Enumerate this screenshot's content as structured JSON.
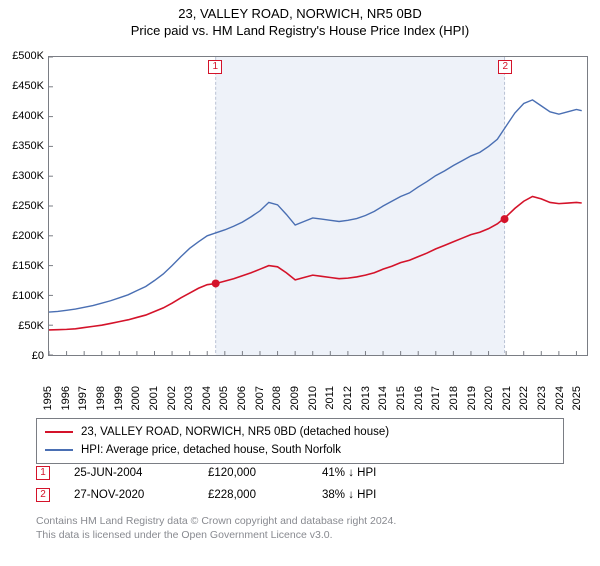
{
  "header": {
    "title": "23, VALLEY ROAD, NORWICH, NR5 0BD",
    "subtitle": "Price paid vs. HM Land Registry's House Price Index (HPI)"
  },
  "chart": {
    "type": "line",
    "background_color": "#ffffff",
    "border_color": "#7a7d84",
    "shaded_region": {
      "x_start": 2004.48,
      "x_end": 2020.91,
      "fill": "#eef2f9",
      "border": "#b9c2d4",
      "border_dash": "3,2"
    },
    "ylim": [
      0,
      500000
    ],
    "ytick_step": 50000,
    "ytick_labels": [
      "£0",
      "£50K",
      "£100K",
      "£150K",
      "£200K",
      "£250K",
      "£300K",
      "£350K",
      "£400K",
      "£450K",
      "£500K"
    ],
    "xlim": [
      1995,
      2025.6
    ],
    "xtick_step": 1,
    "xtick_labels": [
      "1995",
      "1996",
      "1997",
      "1998",
      "1999",
      "2000",
      "2001",
      "2002",
      "2003",
      "2004",
      "2005",
      "2006",
      "2007",
      "2008",
      "2009",
      "2010",
      "2011",
      "2012",
      "2013",
      "2014",
      "2015",
      "2016",
      "2017",
      "2018",
      "2019",
      "2020",
      "2021",
      "2022",
      "2023",
      "2024",
      "2025"
    ],
    "tick_fontsize": 11,
    "series": [
      {
        "name": "23, VALLEY ROAD, NORWICH, NR5 0BD (detached house)",
        "color": "#d4132a",
        "line_width": 1.6,
        "x": [
          1995,
          1995.5,
          1996,
          1996.5,
          1997,
          1997.5,
          1998,
          1998.5,
          1999,
          1999.5,
          2000,
          2000.5,
          2001,
          2001.5,
          2002,
          2002.5,
          2003,
          2003.5,
          2004,
          2004.5,
          2005,
          2005.5,
          2006,
          2006.5,
          2007,
          2007.5,
          2008,
          2008.5,
          2009,
          2009.5,
          2010,
          2010.5,
          2011,
          2011.5,
          2012,
          2012.5,
          2013,
          2013.5,
          2014,
          2014.5,
          2015,
          2015.5,
          2016,
          2016.5,
          2017,
          2017.5,
          2018,
          2018.5,
          2019,
          2019.5,
          2020,
          2020.5,
          2021,
          2021.5,
          2022,
          2022.5,
          2023,
          2023.5,
          2024,
          2024.5,
          2025,
          2025.3
        ],
        "y": [
          42000,
          42500,
          43000,
          44000,
          46000,
          48000,
          50000,
          53000,
          56000,
          59000,
          63000,
          67000,
          73000,
          79000,
          87000,
          96000,
          104000,
          112000,
          118000,
          120000,
          124000,
          128000,
          133000,
          138000,
          144000,
          150000,
          148000,
          138000,
          126000,
          130000,
          134000,
          132000,
          130000,
          128000,
          129000,
          131000,
          134000,
          138000,
          144000,
          149000,
          155000,
          159000,
          165000,
          171000,
          178000,
          184000,
          190000,
          196000,
          202000,
          206000,
          212000,
          220000,
          232000,
          246000,
          258000,
          266000,
          262000,
          256000,
          254000,
          255000,
          256000,
          255000
        ]
      },
      {
        "name": "HPI: Average price, detached house, South Norfolk",
        "color": "#4a6fb3",
        "line_width": 1.4,
        "x": [
          1995,
          1995.5,
          1996,
          1996.5,
          1997,
          1997.5,
          1998,
          1998.5,
          1999,
          1999.5,
          2000,
          2000.5,
          2001,
          2001.5,
          2002,
          2002.5,
          2003,
          2003.5,
          2004,
          2004.5,
          2005,
          2005.5,
          2006,
          2006.5,
          2007,
          2007.5,
          2008,
          2008.5,
          2009,
          2009.5,
          2010,
          2010.5,
          2011,
          2011.5,
          2012,
          2012.5,
          2013,
          2013.5,
          2014,
          2014.5,
          2015,
          2015.5,
          2016,
          2016.5,
          2017,
          2017.5,
          2018,
          2018.5,
          2019,
          2019.5,
          2020,
          2020.5,
          2021,
          2021.5,
          2022,
          2022.5,
          2023,
          2023.5,
          2024,
          2024.5,
          2025,
          2025.3
        ],
        "y": [
          72000,
          73000,
          75000,
          77000,
          80000,
          83000,
          87000,
          91000,
          96000,
          101000,
          108000,
          115000,
          125000,
          136000,
          150000,
          165000,
          179000,
          190000,
          200000,
          205000,
          210000,
          216000,
          223000,
          232000,
          242000,
          256000,
          252000,
          236000,
          218000,
          224000,
          230000,
          228000,
          226000,
          224000,
          226000,
          229000,
          234000,
          241000,
          250000,
          258000,
          266000,
          272000,
          282000,
          291000,
          301000,
          309000,
          318000,
          326000,
          334000,
          340000,
          350000,
          362000,
          384000,
          406000,
          422000,
          428000,
          418000,
          408000,
          404000,
          408000,
          412000,
          410000
        ]
      }
    ],
    "markers": [
      {
        "label": "1",
        "x": 2004.48,
        "y": 120000,
        "color": "#d4132a"
      },
      {
        "label": "2",
        "x": 2020.91,
        "y": 228000,
        "color": "#d4132a"
      }
    ],
    "marker_boxes": [
      {
        "label": "1",
        "x": 2004.48,
        "color": "#d4132a"
      },
      {
        "label": "2",
        "x": 2020.91,
        "color": "#d4132a"
      }
    ]
  },
  "legend": {
    "items": [
      {
        "color": "#d4132a",
        "label": "23, VALLEY ROAD, NORWICH, NR5 0BD (detached house)"
      },
      {
        "color": "#4a6fb3",
        "label": "HPI: Average price, detached house, South Norfolk"
      }
    ]
  },
  "sales": [
    {
      "num": "1",
      "color": "#d4132a",
      "date": "25-JUN-2004",
      "price": "£120,000",
      "pct": "41% ↓ HPI"
    },
    {
      "num": "2",
      "color": "#d4132a",
      "date": "27-NOV-2020",
      "price": "£228,000",
      "pct": "38% ↓ HPI"
    }
  ],
  "footnote": {
    "line1": "Contains HM Land Registry data © Crown copyright and database right 2024.",
    "line2": "This data is licensed under the Open Government Licence v3.0."
  }
}
